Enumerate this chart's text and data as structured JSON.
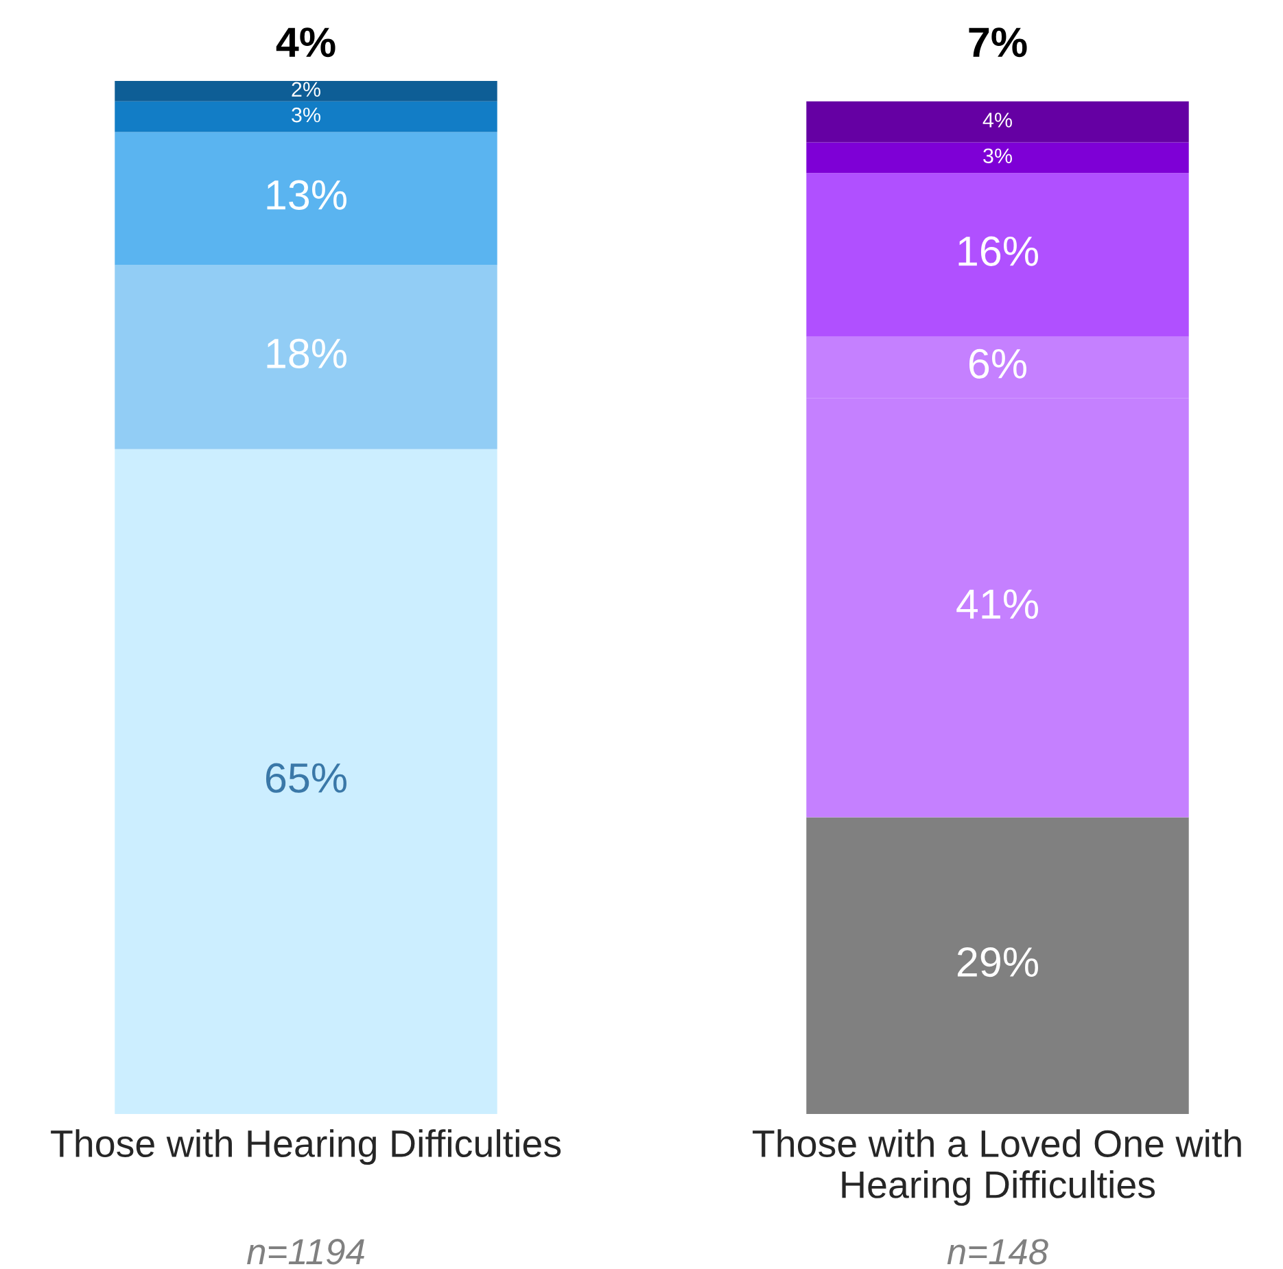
{
  "chart_data": {
    "type": "bar",
    "stacked": true,
    "categories": [
      "Those with Hearing Difficulties",
      "Those with a Loved One with\nHearing Difficulties"
    ],
    "series": [
      {
        "colors": [
          "#cceeff",
          "#808080"
        ],
        "values": [
          65,
          29
        ],
        "value_labels": [
          "65%",
          "29%"
        ]
      },
      {
        "colors": [
          "#92cdf5",
          "#c580ff"
        ],
        "values": [
          18,
          41
        ],
        "value_labels": [
          "18%",
          "41%"
        ]
      },
      {
        "colors": [
          "#5ab4f0",
          "#c580ff"
        ],
        "values": [
          13,
          6
        ],
        "value_labels": [
          "13%",
          "6%"
        ]
      },
      {
        "colors": [
          "#127dc6",
          "#b050ff"
        ],
        "values": [
          3,
          16
        ],
        "value_labels": [
          "3%",
          "16%"
        ]
      },
      {
        "colors": [
          "#0e5e96",
          "#7e00d6"
        ],
        "values": [
          2,
          3
        ],
        "value_labels": [
          "2%",
          "3%"
        ]
      },
      {
        "colors": [
          null,
          "#6500a3"
        ],
        "values": [
          null,
          4
        ],
        "value_labels": [
          null,
          "4%"
        ]
      }
    ],
    "annotations": [
      "4%",
      "7%",
      "n=1194",
      "n=148"
    ],
    "grid": false,
    "legend": false
  }
}
